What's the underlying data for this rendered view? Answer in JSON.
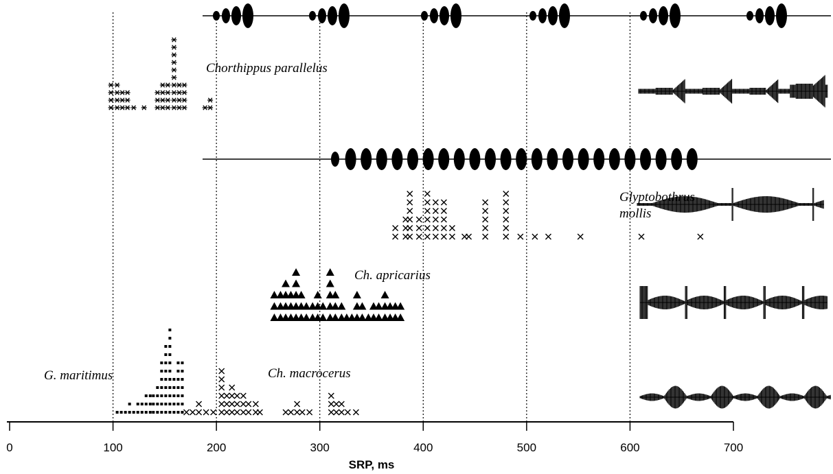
{
  "chart_data": {
    "type": "scatter",
    "xlabel": "SRP, ms",
    "xlim": [
      0,
      700
    ],
    "xticks": [
      0,
      100,
      200,
      300,
      400,
      500,
      600,
      700
    ],
    "grid": true,
    "color": "#000000",
    "series": [
      {
        "name": "Chorthippus parallelus",
        "marker": "asterisk",
        "x": [
          98,
          104,
          109,
          114,
          120,
          130,
          143,
          148,
          153,
          159,
          164,
          169,
          189,
          194
        ],
        "values": [
          4,
          4,
          3,
          3,
          1,
          1,
          3,
          4,
          4,
          10,
          4,
          4,
          1,
          2
        ]
      },
      {
        "name": "Glyptobothrus mollis",
        "marker": "cross",
        "x": [
          373,
          383,
          387,
          396,
          404,
          412,
          420,
          428,
          440,
          444,
          460,
          480,
          494,
          508,
          521,
          552,
          611,
          668
        ],
        "values": [
          2,
          3,
          6,
          3,
          6,
          5,
          5,
          2,
          1,
          1,
          5,
          6,
          1,
          1,
          1,
          1,
          1,
          1
        ]
      },
      {
        "name": "Ch. apricarius",
        "marker": "triangle",
        "x": [
          256,
          262,
          267,
          272,
          277,
          282,
          287,
          293,
          298,
          303,
          310,
          315,
          321,
          326,
          331,
          336,
          341,
          347,
          352,
          357,
          363,
          368,
          373,
          378
        ],
        "values": [
          3,
          3,
          4,
          3,
          5,
          3,
          2,
          2,
          3,
          2,
          5,
          3,
          2,
          1,
          1,
          3,
          2,
          1,
          2,
          2,
          3,
          2,
          2,
          2
        ]
      },
      {
        "name": "G. maritimus",
        "marker": "square",
        "x": [
          104,
          108,
          112,
          116,
          120,
          124,
          128,
          132,
          136,
          139,
          143,
          147,
          151,
          155,
          159,
          163,
          167
        ],
        "values": [
          1,
          1,
          1,
          2,
          1,
          2,
          2,
          3,
          3,
          3,
          4,
          7,
          9,
          11,
          5,
          7,
          7
        ]
      },
      {
        "name": "Ch. macrocerus",
        "marker": "cross",
        "x": [
          171,
          177,
          183,
          190,
          197,
          205,
          210,
          215,
          220,
          226,
          231,
          238,
          242,
          267,
          272,
          278,
          283,
          290,
          311,
          316,
          321,
          327,
          335
        ],
        "values": [
          1,
          1,
          2,
          1,
          1,
          6,
          3,
          4,
          3,
          3,
          2,
          2,
          1,
          1,
          1,
          2,
          1,
          1,
          3,
          2,
          2,
          1,
          1
        ]
      }
    ]
  }
}
